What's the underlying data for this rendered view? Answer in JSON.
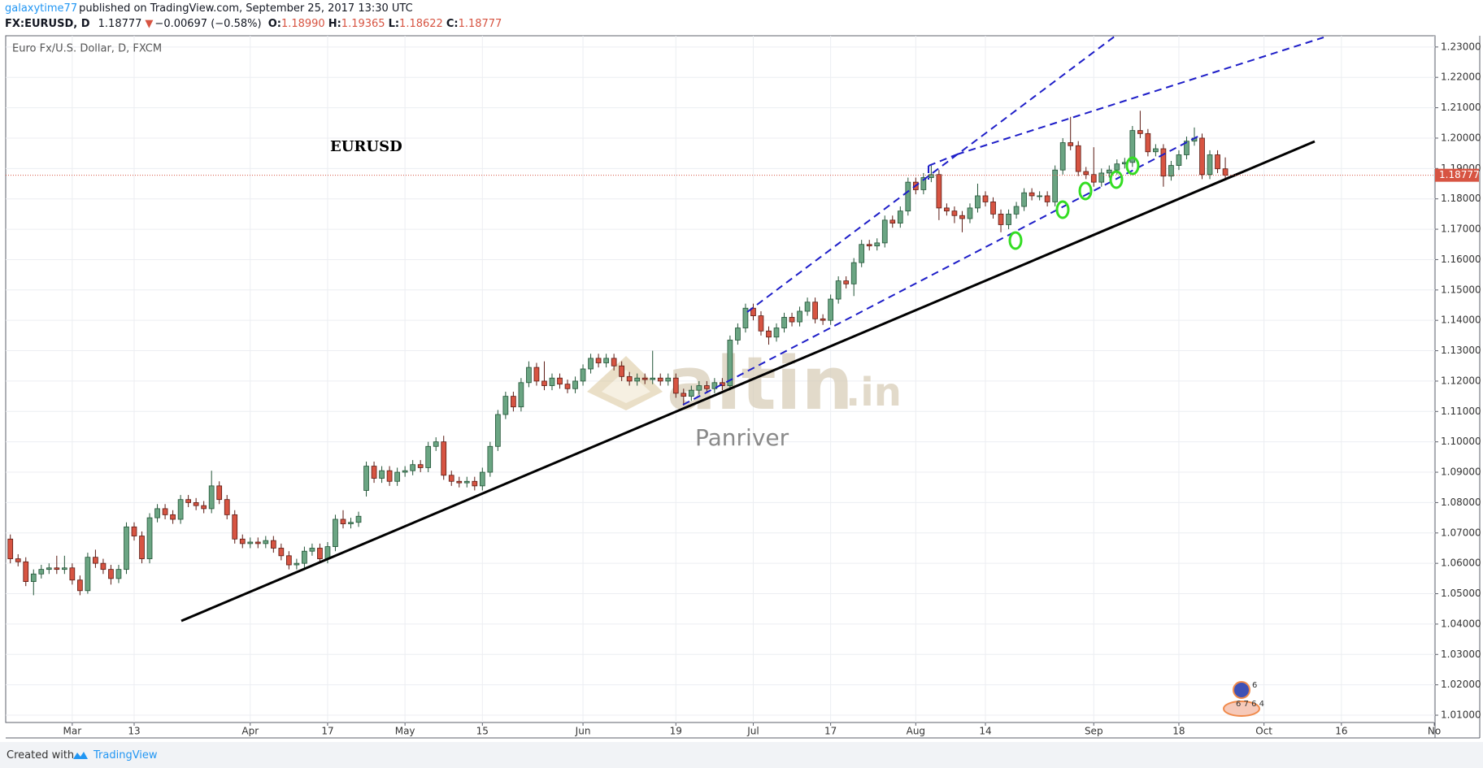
{
  "header": {
    "author": "galaxytime77",
    "published": "published on TradingView.com, September 25, 2017 13:30 UTC",
    "symbol": "FX:EURUSD, D",
    "price": "1.18777",
    "arrow": "▼",
    "change": "−0.00697 (−0.58%)",
    "ohlc": [
      {
        "label": "O:",
        "value": "1.18990"
      },
      {
        "label": "H:",
        "value": "1.19365"
      },
      {
        "label": "L:",
        "value": "1.18622"
      },
      {
        "label": "C:",
        "value": "1.18777"
      }
    ]
  },
  "chart_data": {
    "type": "candlestick",
    "title": "Euro Fx/U.S. Dollar, D, FXCM",
    "annotation": "EURUSD",
    "watermark": {
      "brand": "altin",
      "suffix": ".in",
      "author": "Panriver"
    },
    "colors": {
      "up": "#6ba583",
      "down": "#d75442",
      "up_border": "#225437",
      "down_border": "#5b1a13"
    },
    "grid": true,
    "xlim": [
      -0.6,
      184.1
    ],
    "ylim": [
      1.0076,
      1.2337
    ],
    "xticks": [
      {
        "value": 8,
        "label": "Mar"
      },
      {
        "value": 16,
        "label": "13"
      },
      {
        "value": 31,
        "label": "Apr"
      },
      {
        "value": 41,
        "label": "17"
      },
      {
        "value": 51,
        "label": "May"
      },
      {
        "value": 61,
        "label": "15"
      },
      {
        "value": 74,
        "label": "Jun"
      },
      {
        "value": 86,
        "label": "19"
      },
      {
        "value": 96,
        "label": "Jul"
      },
      {
        "value": 106,
        "label": "17"
      },
      {
        "value": 117,
        "label": "Aug"
      },
      {
        "value": 126,
        "label": "14"
      },
      {
        "value": 140,
        "label": "Sep"
      },
      {
        "value": 151,
        "label": "18"
      },
      {
        "value": 162,
        "label": "Oct"
      },
      {
        "value": 172,
        "label": "16"
      },
      {
        "value": 184,
        "label": "No"
      }
    ],
    "yticks": [
      {
        "value": 1.01,
        "label": "1.01000"
      },
      {
        "value": 1.02,
        "label": "1.02000"
      },
      {
        "value": 1.03,
        "label": "1.03000"
      },
      {
        "value": 1.04,
        "label": "1.04000"
      },
      {
        "value": 1.05,
        "label": "1.05000"
      },
      {
        "value": 1.06,
        "label": "1.06000"
      },
      {
        "value": 1.07,
        "label": "1.07000"
      },
      {
        "value": 1.08,
        "label": "1.08000"
      },
      {
        "value": 1.09,
        "label": "1.09000"
      },
      {
        "value": 1.1,
        "label": "1.10000"
      },
      {
        "value": 1.11,
        "label": "1.11000"
      },
      {
        "value": 1.12,
        "label": "1.12000"
      },
      {
        "value": 1.13,
        "label": "1.13000"
      },
      {
        "value": 1.14,
        "label": "1.14000"
      },
      {
        "value": 1.15,
        "label": "1.15000"
      },
      {
        "value": 1.16,
        "label": "1.16000"
      },
      {
        "value": 1.17,
        "label": "1.17000"
      },
      {
        "value": 1.18,
        "label": "1.18000"
      },
      {
        "value": 1.19,
        "label": "1.19000"
      },
      {
        "value": 1.2,
        "label": "1.20000"
      },
      {
        "value": 1.21,
        "label": "1.21000"
      },
      {
        "value": 1.22,
        "label": "1.22000"
      },
      {
        "value": 1.23,
        "label": "1.23000"
      }
    ],
    "candles": [
      [
        1.068,
        1.0695,
        1.06,
        1.0615
      ],
      [
        1.0615,
        1.063,
        1.059,
        1.0605
      ],
      [
        1.0605,
        1.062,
        1.0525,
        1.054
      ],
      [
        1.054,
        1.058,
        1.0495,
        1.0565
      ],
      [
        1.0565,
        1.0595,
        1.055,
        1.058
      ],
      [
        1.058,
        1.06,
        1.0565,
        1.0585
      ],
      [
        1.0585,
        1.0625,
        1.0565,
        1.058
      ],
      [
        1.058,
        1.0625,
        1.0565,
        1.0585
      ],
      [
        1.0585,
        1.06,
        1.053,
        1.0545
      ],
      [
        1.0545,
        1.056,
        1.0495,
        1.051
      ],
      [
        1.051,
        1.0635,
        1.05,
        1.062
      ],
      [
        1.062,
        1.0645,
        1.0585,
        1.06
      ],
      [
        1.06,
        1.0615,
        1.0565,
        1.058
      ],
      [
        1.058,
        1.0595,
        1.053,
        1.055
      ],
      [
        1.055,
        1.0595,
        1.0535,
        1.058
      ],
      [
        1.058,
        1.0735,
        1.0565,
        1.072
      ],
      [
        1.072,
        1.0735,
        1.0675,
        1.069
      ],
      [
        1.069,
        1.0705,
        1.06,
        1.0615
      ],
      [
        1.0615,
        1.0765,
        1.06,
        1.075
      ],
      [
        1.075,
        1.0795,
        1.0735,
        1.078
      ],
      [
        1.078,
        1.0795,
        1.0745,
        1.076
      ],
      [
        1.076,
        1.0775,
        1.073,
        1.0745
      ],
      [
        1.0745,
        1.0825,
        1.073,
        1.081
      ],
      [
        1.081,
        1.0825,
        1.0785,
        1.08
      ],
      [
        1.08,
        1.0815,
        1.0775,
        1.079
      ],
      [
        1.079,
        1.0805,
        1.0765,
        1.078
      ],
      [
        1.078,
        1.0905,
        1.0765,
        1.0855
      ],
      [
        1.0855,
        1.087,
        1.0795,
        1.081
      ],
      [
        1.081,
        1.0825,
        1.0745,
        1.076
      ],
      [
        1.076,
        1.0775,
        1.0665,
        1.068
      ],
      [
        1.068,
        1.0695,
        1.065,
        1.0665
      ],
      [
        1.0665,
        1.0685,
        1.065,
        1.067
      ],
      [
        1.067,
        1.0685,
        1.065,
        1.0665
      ],
      [
        1.0665,
        1.069,
        1.065,
        1.0675
      ],
      [
        1.0675,
        1.069,
        1.0635,
        1.065
      ],
      [
        1.065,
        1.0665,
        1.061,
        1.0625
      ],
      [
        1.0625,
        1.064,
        1.058,
        1.0595
      ],
      [
        1.0595,
        1.0615,
        1.058,
        1.06
      ],
      [
        1.06,
        1.0655,
        1.0585,
        1.064
      ],
      [
        1.064,
        1.0665,
        1.0625,
        1.065
      ],
      [
        1.065,
        1.0665,
        1.06,
        1.0615
      ],
      [
        1.0615,
        1.067,
        1.06,
        1.0655
      ],
      [
        1.0655,
        1.076,
        1.064,
        1.0745
      ],
      [
        1.0745,
        1.0775,
        1.0715,
        1.073
      ],
      [
        1.073,
        1.075,
        1.0715,
        1.0735
      ],
      [
        1.0735,
        1.077,
        1.072,
        1.0755
      ],
      [
        1.084,
        1.0935,
        1.082,
        1.092
      ],
      [
        1.092,
        1.0935,
        1.0865,
        1.088
      ],
      [
        1.088,
        1.092,
        1.0865,
        1.0905
      ],
      [
        1.0905,
        1.092,
        1.0855,
        1.087
      ],
      [
        1.087,
        1.0915,
        1.0855,
        1.09
      ],
      [
        1.09,
        1.092,
        1.0885,
        1.0905
      ],
      [
        1.0905,
        1.094,
        1.089,
        1.0925
      ],
      [
        1.0925,
        1.094,
        1.09,
        1.0915
      ],
      [
        1.0915,
        1.1,
        1.09,
        1.0985
      ],
      [
        1.0985,
        1.1015,
        1.097,
        1.1
      ],
      [
        1.1,
        1.102,
        1.0875,
        1.089
      ],
      [
        1.089,
        1.0905,
        1.0855,
        1.087
      ],
      [
        1.087,
        1.0885,
        1.085,
        1.0865
      ],
      [
        1.0865,
        1.0885,
        1.085,
        1.087
      ],
      [
        1.087,
        1.0885,
        1.084,
        1.0855
      ],
      [
        1.0855,
        1.0915,
        1.084,
        1.09
      ],
      [
        1.09,
        1.1,
        1.0885,
        1.0985
      ],
      [
        1.0985,
        1.1105,
        1.097,
        1.109
      ],
      [
        1.109,
        1.1165,
        1.1075,
        1.115
      ],
      [
        1.115,
        1.1165,
        1.11,
        1.1115
      ],
      [
        1.1115,
        1.121,
        1.11,
        1.1195
      ],
      [
        1.1195,
        1.1265,
        1.118,
        1.1245
      ],
      [
        1.1245,
        1.126,
        1.1185,
        1.12
      ],
      [
        1.12,
        1.1265,
        1.117,
        1.1185
      ],
      [
        1.1185,
        1.1225,
        1.117,
        1.121
      ],
      [
        1.121,
        1.1225,
        1.1175,
        1.119
      ],
      [
        1.119,
        1.1205,
        1.116,
        1.1175
      ],
      [
        1.1175,
        1.1215,
        1.116,
        1.12
      ],
      [
        1.12,
        1.1255,
        1.1185,
        1.124
      ],
      [
        1.124,
        1.129,
        1.1225,
        1.1275
      ],
      [
        1.1275,
        1.129,
        1.1245,
        1.126
      ],
      [
        1.126,
        1.129,
        1.1245,
        1.1275
      ],
      [
        1.1275,
        1.129,
        1.1235,
        1.125
      ],
      [
        1.125,
        1.1265,
        1.12,
        1.1215
      ],
      [
        1.1215,
        1.123,
        1.1185,
        1.12
      ],
      [
        1.12,
        1.1225,
        1.1185,
        1.121
      ],
      [
        1.121,
        1.1225,
        1.119,
        1.1205
      ],
      [
        1.1205,
        1.13,
        1.119,
        1.121
      ],
      [
        1.121,
        1.1225,
        1.1185,
        1.12
      ],
      [
        1.12,
        1.1225,
        1.1185,
        1.121
      ],
      [
        1.121,
        1.1225,
        1.1145,
        1.116
      ],
      [
        1.116,
        1.1175,
        1.112,
        1.115
      ],
      [
        1.115,
        1.1185,
        1.1135,
        1.117
      ],
      [
        1.117,
        1.12,
        1.1155,
        1.1185
      ],
      [
        1.1185,
        1.12,
        1.116,
        1.1175
      ],
      [
        1.1175,
        1.121,
        1.116,
        1.1195
      ],
      [
        1.1195,
        1.121,
        1.117,
        1.1185
      ],
      [
        1.1185,
        1.135,
        1.117,
        1.1335
      ],
      [
        1.1335,
        1.139,
        1.132,
        1.1375
      ],
      [
        1.1375,
        1.1455,
        1.136,
        1.144
      ],
      [
        1.144,
        1.1455,
        1.14,
        1.1415
      ],
      [
        1.1415,
        1.143,
        1.135,
        1.1365
      ],
      [
        1.1365,
        1.138,
        1.132,
        1.1345
      ],
      [
        1.1345,
        1.139,
        1.133,
        1.1375
      ],
      [
        1.1375,
        1.1425,
        1.136,
        1.141
      ],
      [
        1.141,
        1.1425,
        1.138,
        1.1395
      ],
      [
        1.1395,
        1.1445,
        1.138,
        1.143
      ],
      [
        1.143,
        1.1475,
        1.1415,
        1.146
      ],
      [
        1.146,
        1.1475,
        1.139,
        1.1405
      ],
      [
        1.1405,
        1.142,
        1.1385,
        1.14
      ],
      [
        1.14,
        1.1485,
        1.1385,
        1.147
      ],
      [
        1.147,
        1.1545,
        1.1455,
        1.153
      ],
      [
        1.153,
        1.1545,
        1.1505,
        1.152
      ],
      [
        1.152,
        1.1605,
        1.148,
        1.159
      ],
      [
        1.159,
        1.1665,
        1.1575,
        1.165
      ],
      [
        1.165,
        1.1665,
        1.163,
        1.1645
      ],
      [
        1.1645,
        1.167,
        1.163,
        1.1655
      ],
      [
        1.1655,
        1.1745,
        1.164,
        1.173
      ],
      [
        1.173,
        1.1745,
        1.1705,
        1.172
      ],
      [
        1.172,
        1.1775,
        1.1705,
        1.176
      ],
      [
        1.176,
        1.187,
        1.1745,
        1.1855
      ],
      [
        1.1855,
        1.187,
        1.1815,
        1.183
      ],
      [
        1.183,
        1.1885,
        1.1815,
        1.187
      ],
      [
        1.187,
        1.191,
        1.1855,
        1.188
      ],
      [
        1.188,
        1.1895,
        1.173,
        1.177
      ],
      [
        1.177,
        1.1785,
        1.1745,
        1.176
      ],
      [
        1.176,
        1.1775,
        1.172,
        1.1745
      ],
      [
        1.1745,
        1.176,
        1.169,
        1.1735
      ],
      [
        1.1735,
        1.1785,
        1.172,
        1.177
      ],
      [
        1.177,
        1.185,
        1.1755,
        1.181
      ],
      [
        1.181,
        1.1825,
        1.1775,
        1.179
      ],
      [
        1.179,
        1.1805,
        1.1735,
        1.175
      ],
      [
        1.175,
        1.1765,
        1.169,
        1.1715
      ],
      [
        1.1715,
        1.1765,
        1.17,
        1.175
      ],
      [
        1.175,
        1.179,
        1.1735,
        1.1775
      ],
      [
        1.1775,
        1.1835,
        1.176,
        1.182
      ],
      [
        1.182,
        1.1835,
        1.1795,
        1.181
      ],
      [
        1.181,
        1.1825,
        1.1795,
        1.181
      ],
      [
        1.181,
        1.1825,
        1.1775,
        1.179
      ],
      [
        1.179,
        1.191,
        1.1775,
        1.1895
      ],
      [
        1.1895,
        1.2,
        1.188,
        1.1985
      ],
      [
        1.1985,
        1.207,
        1.196,
        1.1975
      ],
      [
        1.1975,
        1.199,
        1.1875,
        1.189
      ],
      [
        1.189,
        1.1905,
        1.1865,
        1.188
      ],
      [
        1.188,
        1.197,
        1.184,
        1.1855
      ],
      [
        1.1855,
        1.19,
        1.184,
        1.1885
      ],
      [
        1.1885,
        1.191,
        1.187,
        1.1895
      ],
      [
        1.1895,
        1.193,
        1.188,
        1.1915
      ],
      [
        1.1915,
        1.1935,
        1.19,
        1.192
      ],
      [
        1.192,
        1.204,
        1.1905,
        1.2025
      ],
      [
        1.2025,
        1.209,
        1.2,
        1.2015
      ],
      [
        1.2015,
        1.203,
        1.194,
        1.1955
      ],
      [
        1.1955,
        1.198,
        1.194,
        1.1965
      ],
      [
        1.1965,
        1.198,
        1.184,
        1.1875
      ],
      [
        1.1875,
        1.1925,
        1.186,
        1.191
      ],
      [
        1.191,
        1.196,
        1.1895,
        1.1945
      ],
      [
        1.1945,
        1.2005,
        1.193,
        1.199
      ],
      [
        1.199,
        1.2035,
        1.1975,
        1.2
      ],
      [
        1.2,
        1.2015,
        1.1865,
        1.188
      ],
      [
        1.188,
        1.196,
        1.1865,
        1.1945
      ],
      [
        1.1945,
        1.196,
        1.1885,
        1.1899
      ],
      [
        1.1899,
        1.19365,
        1.18622,
        1.18777
      ]
    ]
  },
  "badge": {
    "top": "6",
    "bottom": "6 7 6 4"
  },
  "footer": {
    "created": "Created with",
    "brand": "TradingView"
  }
}
